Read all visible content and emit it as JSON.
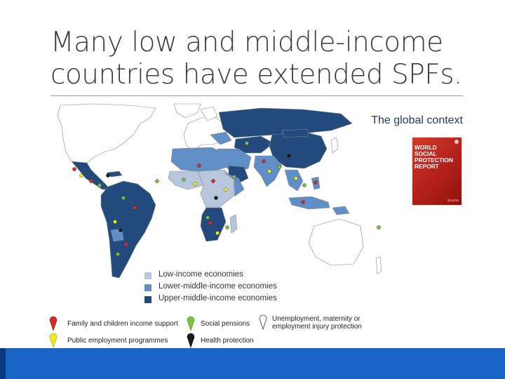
{
  "slide": {
    "title_line1": "Many low and middle-income",
    "title_line2": "countries have extended SPFs.",
    "context_label": "The global context"
  },
  "report_cover": {
    "title_lines": [
      "WORLD",
      "SOCIAL",
      "PROTECTION",
      "REPORT"
    ],
    "year": "2014/15"
  },
  "map_legend": {
    "income_groups": [
      {
        "label": "Low-income economies",
        "color": "#b8c6de"
      },
      {
        "label": "Lower-middle-income economies",
        "color": "#5f8fc6"
      },
      {
        "label": "Upper-middle-income economies",
        "color": "#234a7c"
      }
    ],
    "other_color": "#ffffff",
    "coastline_color": "#8a8a8a"
  },
  "policy_legend": [
    {
      "icon": "red-pin-icon",
      "color": "#d42a2a",
      "label": "Family and children income support"
    },
    {
      "icon": "yellow-pin-icon",
      "color": "#f4ea18",
      "label": "Public employment programmes"
    },
    {
      "icon": "green-pin-icon",
      "color": "#7cc242",
      "label": "Social pensions"
    },
    {
      "icon": "black-pin-icon",
      "color": "#1a1a1a",
      "label": "Health protection"
    },
    {
      "icon": "white-pin-icon",
      "color": "#ffffff",
      "label": "Unemployment, maternity or employment injury protection"
    }
  ],
  "colors": {
    "footer": "#1764c4",
    "footer_accent": "#0c3a80",
    "title_text": "#3a3a3a",
    "context_text": "#1f3a5a"
  }
}
